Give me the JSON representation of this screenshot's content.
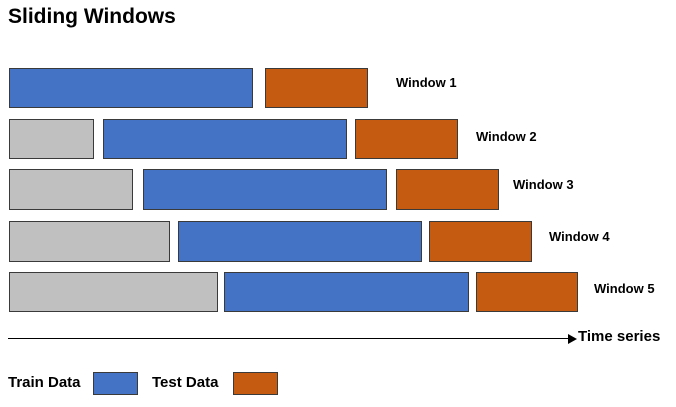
{
  "title": "Sliding Windows",
  "colors": {
    "train": "#4472c4",
    "test": "#c55a11",
    "gap": "#c0c0c0"
  },
  "windows": [
    {
      "label": "Window 1"
    },
    {
      "label": "Window 2"
    },
    {
      "label": "Window 3"
    },
    {
      "label": "Window 4"
    },
    {
      "label": "Window 5"
    }
  ],
  "axis": {
    "label": "Time series"
  },
  "legend": {
    "train_label": "Train Data",
    "test_label": "Test Data"
  }
}
